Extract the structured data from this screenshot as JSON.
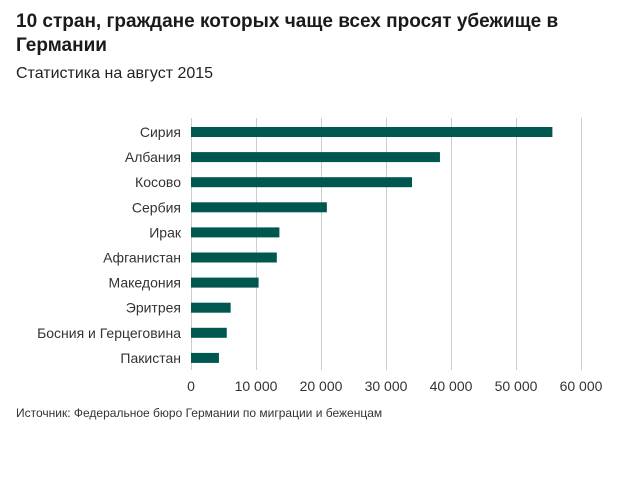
{
  "header": {
    "title": "10 стран, граждане которых чаще всех просят убежище в Германии",
    "subtitle": "Статистика на август 2015"
  },
  "footer": {
    "source": "Источник: Федеральное бюро Германии по миграции и беженцам"
  },
  "colors": {
    "bar": "#00574f",
    "grid": "#cccccc",
    "label": "#333333"
  },
  "chart_data": {
    "type": "bar",
    "orientation": "horizontal",
    "categories": [
      "Сирия",
      "Албания",
      "Косово",
      "Сербия",
      "Ирак",
      "Афганистан",
      "Македония",
      "Эритрея",
      "Босния и Герцеговина",
      "Пакистан"
    ],
    "values": [
      55600,
      38300,
      34000,
      20900,
      13600,
      13200,
      10400,
      6100,
      5500,
      4300
    ],
    "xlim": [
      0,
      60000
    ],
    "xticks": [
      0,
      10000,
      20000,
      30000,
      40000,
      50000,
      60000
    ],
    "xtick_labels": [
      "0",
      "10 000",
      "20 000",
      "30 000",
      "40 000",
      "50 000",
      "60 000"
    ],
    "grid": true,
    "legend": "none"
  }
}
